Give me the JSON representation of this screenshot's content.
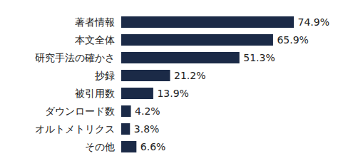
{
  "chart_data": {
    "type": "bar",
    "orientation": "horizontal",
    "categories": [
      "著者情報",
      "本文全体",
      "研究手法の確かさ",
      "抄録",
      "被引用数",
      "ダウンロード数",
      "オルトメトリクス",
      "その他"
    ],
    "values": [
      74.9,
      65.9,
      51.3,
      21.2,
      13.9,
      4.2,
      3.8,
      6.6
    ],
    "value_labels": [
      "74.9%",
      "65.9%",
      "51.3%",
      "21.2%",
      "13.9%",
      "4.2%",
      "3.8%",
      "6.6%"
    ],
    "color": "#1b2a47",
    "data_labels": true,
    "tick_labels": "y",
    "grid": false
  }
}
